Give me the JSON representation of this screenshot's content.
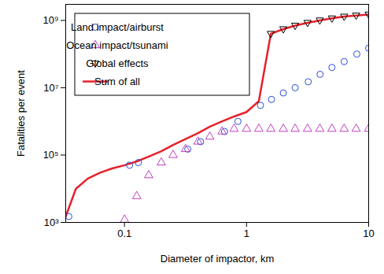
{
  "chart_data": {
    "type": "scatter",
    "log": true,
    "grid": false,
    "legend": "top-left",
    "x_label": "Diameter of impactor, km",
    "y_label": "Fatalities per event",
    "xlim": [
      0.033,
      10
    ],
    "ylim": [
      1000,
      3000000000
    ],
    "xticks": [
      0.1,
      1,
      10
    ],
    "yticks": [
      {
        "value": 1000,
        "label": "10³"
      },
      {
        "value": 100000,
        "label": "10⁵"
      },
      {
        "value": 10000000,
        "label": "10⁷"
      },
      {
        "value": 1000000000,
        "label": "10⁹"
      }
    ],
    "series": [
      {
        "name": "Land impact/airburst",
        "type": "scatter",
        "marker": "circle",
        "color": "#2a4fd6",
        "x": [
          0.035,
          0.11,
          0.13,
          0.33,
          0.42,
          0.66,
          0.85,
          1.3,
          1.6,
          2.0,
          2.5,
          3.2,
          4.0,
          5.0,
          6.3,
          8.0,
          10
        ],
        "values": [
          1500,
          50000,
          60000,
          150000,
          250000,
          500000,
          1000000,
          3000000,
          4500000,
          7000000,
          10000000,
          15000000,
          25000000,
          40000000,
          60000000,
          100000000,
          150000000
        ]
      },
      {
        "name": "Ocean impact/tsunami",
        "type": "scatter",
        "marker": "triangle",
        "color": "#c13fbf",
        "x": [
          0.1,
          0.126,
          0.158,
          0.2,
          0.25,
          0.316,
          0.4,
          0.5,
          0.63,
          0.79,
          1.0,
          1.26,
          1.58,
          2.0,
          2.5,
          3.16,
          3.98,
          5.0,
          6.3,
          7.9,
          10
        ],
        "values": [
          1200,
          6000,
          25000,
          60000,
          100000,
          150000,
          250000,
          350000,
          500000,
          600000,
          600000,
          600000,
          600000,
          600000,
          600000,
          600000,
          600000,
          600000,
          600000,
          600000,
          600000
        ]
      },
      {
        "name": "Global effects",
        "type": "scatter",
        "marker": "triangle-down",
        "color": "#000000",
        "x": [
          1.58,
          2.0,
          2.5,
          3.16,
          3.98,
          5.0,
          6.3,
          7.9,
          10
        ],
        "values": [
          400000000,
          550000000,
          700000000,
          850000000,
          1000000000,
          1150000000,
          1300000000,
          1400000000,
          1500000000
        ]
      },
      {
        "name": "Sum of all",
        "type": "line",
        "color": "#e8202a",
        "x": [
          0.033,
          0.04,
          0.05,
          0.063,
          0.079,
          0.1,
          0.126,
          0.158,
          0.2,
          0.25,
          0.316,
          0.4,
          0.5,
          0.63,
          0.79,
          1.0,
          1.26,
          1.58,
          2.0,
          2.5,
          3.16,
          3.98,
          5.0,
          6.3,
          7.9,
          10
        ],
        "values": [
          1500,
          10000,
          20000,
          30000,
          40000,
          50000,
          65000,
          90000,
          130000,
          200000,
          300000,
          450000,
          700000,
          1000000,
          1400000,
          1900000,
          4000000,
          400000000,
          550000000,
          700000000,
          850000000,
          1000000000,
          1150000000,
          1300000000,
          1400000000,
          1500000000
        ]
      }
    ]
  }
}
